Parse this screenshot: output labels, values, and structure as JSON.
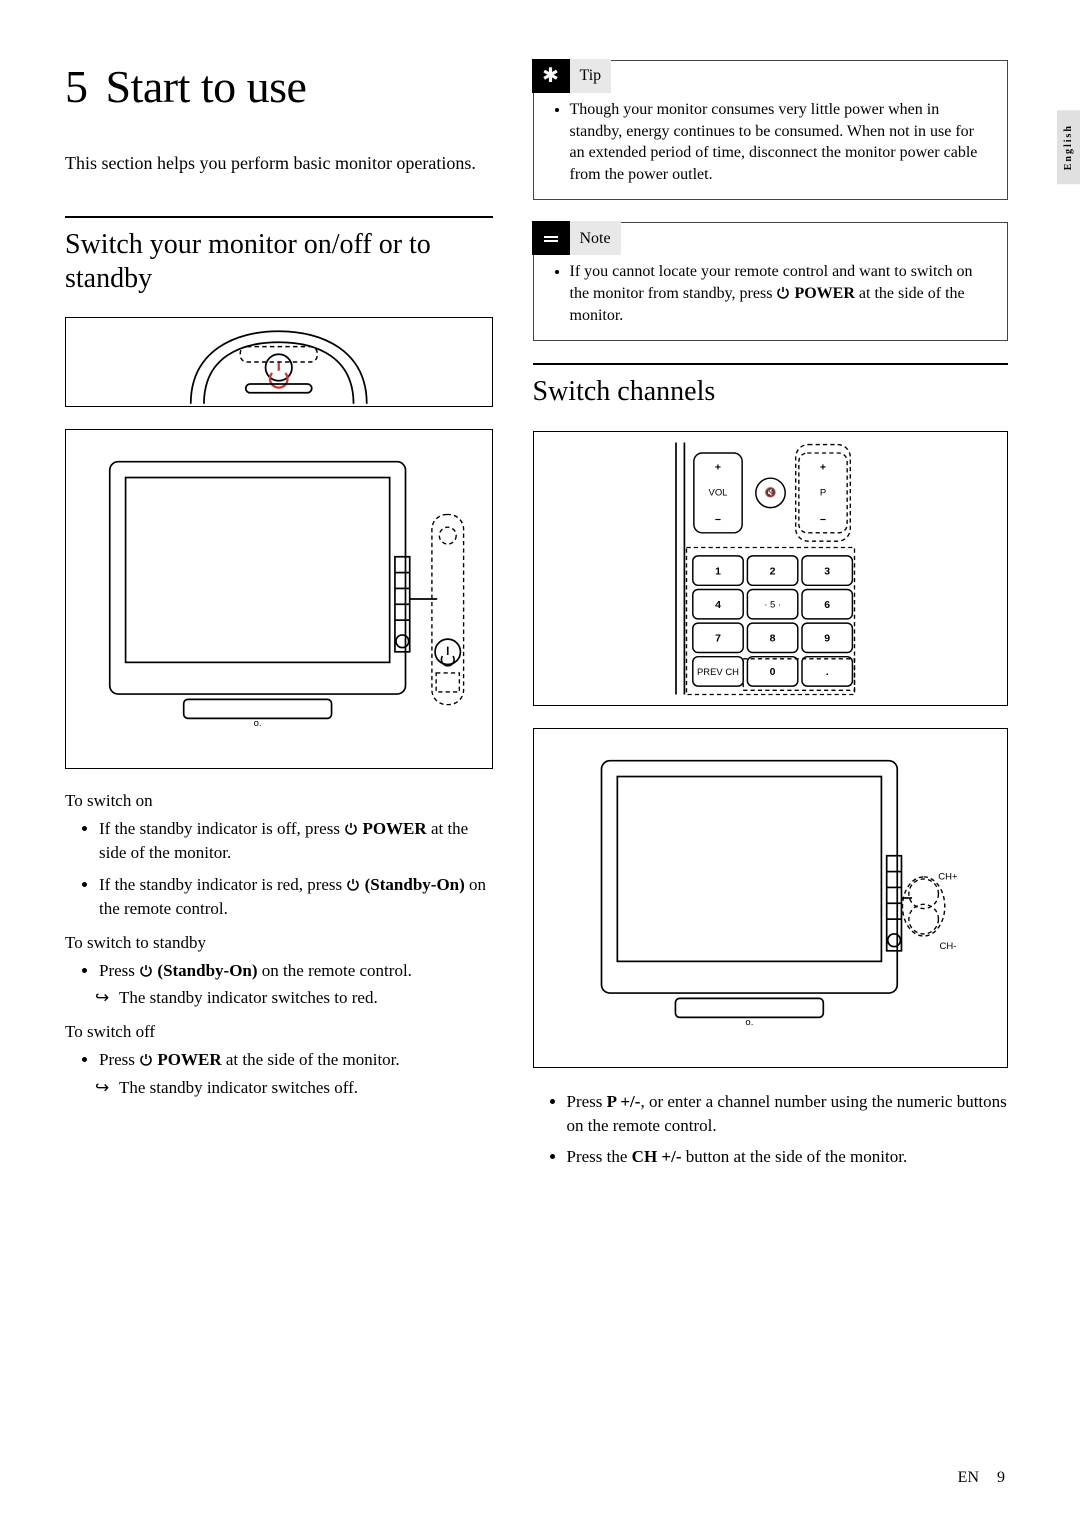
{
  "language_tab": "English",
  "chapter": {
    "number": "5",
    "title": "Start to use"
  },
  "intro": "This section helps you perform basic monitor operations.",
  "section_switch": {
    "title": "Switch your monitor on/off or to standby",
    "to_switch_on": "To switch on",
    "to_switch_on_items": [
      {
        "pre": "If the standby indicator is off, press ",
        "bold": "POWER",
        "post": " at the side of the monitor.",
        "icon": true
      },
      {
        "pre": "If the standby indicator is red, press ",
        "bold": "(Standby-On)",
        "post": " on the remote control.",
        "icon": true,
        "bold_wrapped": false,
        "standby": true
      }
    ],
    "to_standby": "To switch to standby",
    "to_standby_item_pre": "Press ",
    "to_standby_item_bold": "(Standby-On)",
    "to_standby_item_post": " on the remote control.",
    "to_standby_result": "The standby indicator switches to red.",
    "to_switch_off": "To switch off",
    "to_switch_off_item_pre": "Press ",
    "to_switch_off_item_bold": "POWER",
    "to_switch_off_item_post": " at the side of the monitor.",
    "to_switch_off_result": "The standby indicator switches off."
  },
  "tip": {
    "label": "Tip",
    "text": "Though your monitor consumes very little power when in standby, energy continues to be consumed. When not in use for an extended period of time, disconnect the monitor power cable from the power outlet."
  },
  "note": {
    "label": "Note",
    "pre": "If you cannot locate your remote control and want to switch on the monitor from standby, press ",
    "bold": "POWER",
    "post": " at the side of the monitor."
  },
  "section_channels": {
    "title": "Switch channels",
    "item1_pre": "Press ",
    "item1_bold": "P +/-",
    "item1_post": ", or enter a channel number using the numeric buttons on the remote control.",
    "item2_pre": "Press the ",
    "item2_bold": "CH +/-",
    "item2_post": " button at the side of the monitor."
  },
  "remote_numpad": {
    "vol_label": "VOL",
    "p_label": "P",
    "keys": [
      "1",
      "2",
      "3",
      "4",
      "5",
      "6",
      "7",
      "8",
      "9",
      "PREV CH",
      "0",
      "."
    ],
    "ch_plus": "CH+",
    "ch_minus": "CH-"
  },
  "tv_labels": {
    "power_side": "",
    "ch_plus": "CH+",
    "ch_minus": "CH-"
  },
  "footer": {
    "lang": "EN",
    "page": "9"
  },
  "colors": {
    "text": "#000000",
    "bg": "#ffffff",
    "badge_bg": "#e8e8e8",
    "tab_bg": "#e0e0e0"
  }
}
